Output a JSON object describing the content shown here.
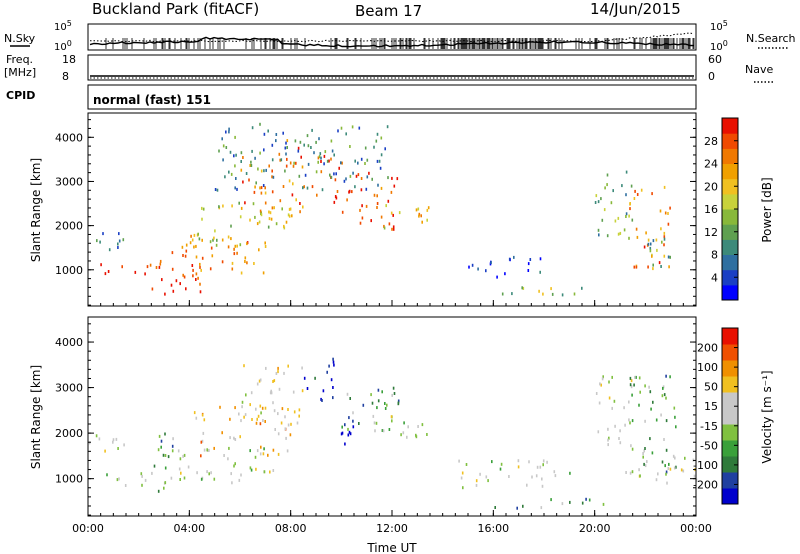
{
  "header": {
    "site": "Buckland Park (fitACF)",
    "beam": "Beam 17",
    "date": "14/Jun/2015"
  },
  "status_panels": {
    "nsky_label": "N.Sky",
    "nsearch_label": "N.Search",
    "nsky_ticks": [
      "10^5",
      "10^0"
    ],
    "nsearch_ticks": [
      "10^5",
      "10^0"
    ],
    "freq_label_1": "Freq.",
    "freq_label_2": "[MHz]",
    "freq_ticks": [
      "18",
      "8"
    ],
    "nave_label": "Nave",
    "nave_ticks": [
      "60",
      "0"
    ],
    "cpid_label": "CPID",
    "cpid_value": "normal (fast) 151"
  },
  "chart_data": [
    {
      "type": "heatmap",
      "name": "power",
      "ylabel": "Slant Range [km]",
      "ylim": [
        180,
        4550
      ],
      "y_ticks": [
        "1000",
        "2000",
        "3000",
        "4000"
      ],
      "x_ticks": [
        "00:00",
        "04:00",
        "08:00",
        "12:00",
        "16:00",
        "20:00",
        "00:00"
      ],
      "xlim_hours": [
        0,
        24
      ],
      "colorbar": {
        "label": "Power [dB]",
        "ticks": [
          "28",
          "24",
          "20",
          "16",
          "12",
          "8",
          "4"
        ],
        "colors": [
          "#0000ff",
          "#1a3fc4",
          "#2f6fa0",
          "#3d8a7a",
          "#5fa050",
          "#88b83a",
          "#c8d23a",
          "#f0c020",
          "#f0a000",
          "#f07800",
          "#f04a00",
          "#e81000"
        ]
      },
      "scatter_regions": [
        {
          "t0": 0.0,
          "t1": 2.8,
          "r0": 850,
          "r1": 1150,
          "level": 0.92
        },
        {
          "t0": 0.0,
          "t1": 1.4,
          "r0": 1400,
          "r1": 2000,
          "level": 0.25
        },
        {
          "t0": 2.5,
          "t1": 4.5,
          "r0": 350,
          "r1": 1100,
          "level": 0.95
        },
        {
          "t0": 2.8,
          "t1": 7.0,
          "r0": 900,
          "r1": 1800,
          "level": 0.75
        },
        {
          "t0": 4.0,
          "t1": 8.0,
          "r0": 1500,
          "r1": 2600,
          "level": 0.55
        },
        {
          "t0": 6.0,
          "t1": 8.6,
          "r0": 2200,
          "r1": 3600,
          "level": 0.8
        },
        {
          "t0": 7.5,
          "t1": 8.3,
          "r0": 3400,
          "r1": 4000,
          "level": 0.85
        },
        {
          "t0": 8.8,
          "t1": 10.0,
          "r0": 2500,
          "r1": 3700,
          "level": 0.9
        },
        {
          "t0": 10.0,
          "t1": 12.2,
          "r0": 1900,
          "r1": 3200,
          "level": 0.85
        },
        {
          "t0": 11.5,
          "t1": 13.6,
          "r0": 1900,
          "r1": 2500,
          "level": 0.6
        },
        {
          "t0": 5.0,
          "t1": 12.0,
          "r0": 2800,
          "r1": 4300,
          "level": 0.3
        },
        {
          "t0": 15.0,
          "t1": 18.0,
          "r0": 800,
          "r1": 1300,
          "level": 0.1
        },
        {
          "t0": 16.0,
          "t1": 20.0,
          "r0": 350,
          "r1": 600,
          "level": 0.45
        },
        {
          "t0": 20.0,
          "t1": 21.5,
          "r0": 1700,
          "r1": 3300,
          "level": 0.4
        },
        {
          "t0": 21.3,
          "t1": 23.0,
          "r0": 1000,
          "r1": 2900,
          "level": 0.75
        },
        {
          "t0": 22.0,
          "t1": 23.5,
          "r0": 1000,
          "r1": 1700,
          "level": 0.35
        }
      ]
    },
    {
      "type": "heatmap",
      "name": "velocity",
      "ylabel": "Slant Range [km]",
      "ylim": [
        180,
        4550
      ],
      "y_ticks": [
        "1000",
        "2000",
        "3000",
        "4000"
      ],
      "x_ticks": [
        "00:00",
        "04:00",
        "08:00",
        "12:00",
        "16:00",
        "20:00",
        "00:00"
      ],
      "xlim_hours": [
        0,
        24
      ],
      "xlabel": "Time UT",
      "colorbar": {
        "label": "Velocity [m s⁻¹]",
        "ticks": [
          "200",
          "100",
          "50",
          "15",
          "-15",
          "-50",
          "-100",
          "-200"
        ],
        "colors": [
          "#0000cc",
          "#2040a0",
          "#2f7a3a",
          "#3aa03a",
          "#80c040",
          "#c8c8c8",
          "#c8c8c8",
          "#f0c020",
          "#f09000",
          "#f05000",
          "#e81000"
        ]
      },
      "scatter_regions": [
        {
          "t0": 0.0,
          "t1": 3.0,
          "r0": 850,
          "r1": 1150,
          "level": 0.5
        },
        {
          "t0": 0.0,
          "t1": 1.4,
          "r0": 1400,
          "r1": 2000,
          "level": 0.5
        },
        {
          "t0": 2.5,
          "t1": 3.5,
          "r0": 700,
          "r1": 2000,
          "level": 0.3
        },
        {
          "t0": 3.0,
          "t1": 7.5,
          "r0": 900,
          "r1": 1700,
          "level": 0.5
        },
        {
          "t0": 4.0,
          "t1": 8.0,
          "r0": 1500,
          "r1": 2600,
          "level": 0.7
        },
        {
          "t0": 6.0,
          "t1": 8.6,
          "r0": 2200,
          "r1": 3500,
          "level": 0.6
        },
        {
          "t0": 8.5,
          "t1": 9.8,
          "r0": 2700,
          "r1": 3700,
          "level": 0.05
        },
        {
          "t0": 9.6,
          "t1": 10.6,
          "r0": 1700,
          "r1": 2300,
          "level": 0.05
        },
        {
          "t0": 10.0,
          "t1": 12.5,
          "r0": 2000,
          "r1": 3000,
          "level": 0.3
        },
        {
          "t0": 11.0,
          "t1": 13.6,
          "r0": 1900,
          "r1": 2500,
          "level": 0.5
        },
        {
          "t0": 14.5,
          "t1": 19.0,
          "r0": 800,
          "r1": 1400,
          "level": 0.5
        },
        {
          "t0": 16.0,
          "t1": 21.0,
          "r0": 350,
          "r1": 550,
          "level": 0.32
        },
        {
          "t0": 20.0,
          "t1": 21.5,
          "r0": 1700,
          "r1": 3300,
          "level": 0.5
        },
        {
          "t0": 21.3,
          "t1": 23.2,
          "r0": 1000,
          "r1": 3300,
          "level": 0.35
        },
        {
          "t0": 21.0,
          "t1": 24.0,
          "r0": 900,
          "r1": 1500,
          "level": 0.5
        }
      ]
    }
  ]
}
